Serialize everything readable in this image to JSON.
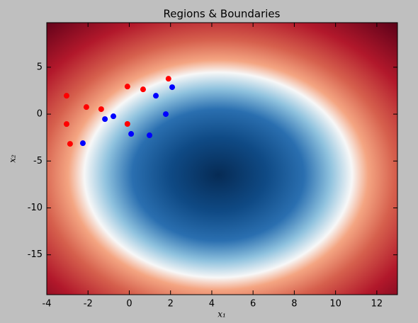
{
  "chart_data": {
    "type": "scatter",
    "title": "Regions & Boundaries",
    "xlabel": "x₁",
    "ylabel": "x₂",
    "xlim": [
      -4,
      13
    ],
    "ylim": [
      -19.25,
      9.75
    ],
    "xticks": [
      -4,
      -2,
      0,
      2,
      4,
      6,
      8,
      10,
      12
    ],
    "yticks": [
      -15,
      -10,
      -5,
      0,
      5
    ],
    "series": [
      {
        "color": "#ff0000",
        "x": [
          -3.04,
          -3.04,
          -2.87,
          -2.08,
          -1.36,
          -0.09,
          -0.09,
          0.67,
          1.9
        ],
        "y": [
          1.96,
          -1.06,
          -3.17,
          0.75,
          0.53,
          2.94,
          -1.05,
          2.64,
          3.77
        ]
      },
      {
        "color": "#0000ff",
        "x": [
          -2.25,
          -1.18,
          -0.77,
          0.09,
          0.98,
          1.29,
          1.77,
          2.08
        ],
        "y": [
          -3.1,
          -0.53,
          -0.23,
          -2.11,
          -2.26,
          1.96,
          0,
          2.87
        ]
      }
    ]
  }
}
